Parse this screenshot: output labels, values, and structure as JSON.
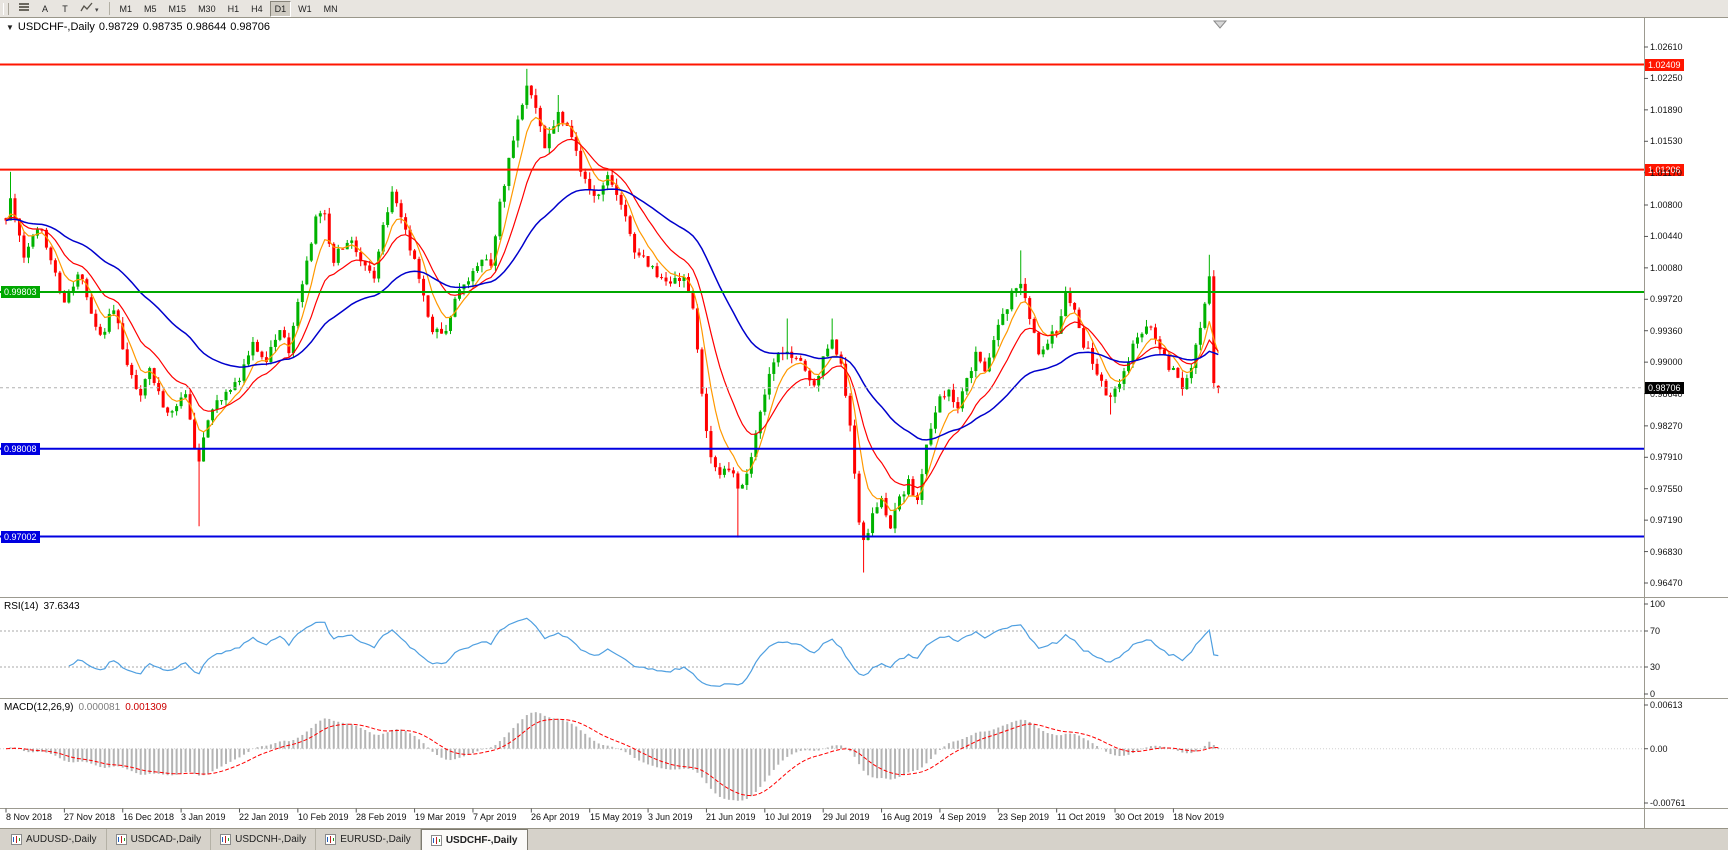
{
  "toolbar": {
    "font_label": "A",
    "text_label": "T",
    "dropdown_glyph": "▾",
    "timeframes": [
      "M1",
      "M5",
      "M15",
      "M30",
      "H1",
      "H4",
      "D1",
      "W1",
      "MN"
    ],
    "active_timeframe": "D1"
  },
  "header": {
    "collapse_arrow": "▼",
    "symbol_period": "USDCHF-,Daily",
    "open": "0.98729",
    "high": "0.98735",
    "low": "0.98644",
    "close": "0.98706"
  },
  "chart_data": {
    "type": "candlestick",
    "symbol": "USDCHF",
    "timeframe": "Daily",
    "current_ohlc": {
      "open": 0.98729,
      "high": 0.98735,
      "low": 0.98644,
      "close": 0.98706
    },
    "price_axis_ticks": [
      "1.02610",
      "1.02250",
      "1.01890",
      "1.01530",
      "1.01170",
      "1.00800",
      "1.00440",
      "1.00080",
      "0.99720",
      "0.99360",
      "0.99000",
      "0.98640",
      "0.98270",
      "0.97910",
      "0.97550",
      "0.97190",
      "0.96830",
      "0.96470"
    ],
    "levels": [
      {
        "price": 1.02409,
        "label": "1.02409",
        "color": "#ff1500",
        "side": "right"
      },
      {
        "price": 1.01206,
        "label": "1.01206",
        "color": "#ff1500",
        "side": "right"
      },
      {
        "price": 0.99803,
        "label": "0.99803",
        "color": "#00a800",
        "side": "left"
      },
      {
        "price": 0.98008,
        "label": "0.98008",
        "color": "#0000e0",
        "side": "left"
      },
      {
        "price": 0.97002,
        "label": "0.97002",
        "color": "#0000e0",
        "side": "left"
      }
    ],
    "current_price": {
      "label": "0.98706",
      "value": 0.98706,
      "box_color": "#000000"
    },
    "date_axis": [
      [
        "8 Nov 2018",
        0
      ],
      [
        "27 Nov 2018",
        13
      ],
      [
        "16 Dec 2018",
        26
      ],
      [
        "3 Jan 2019",
        39
      ],
      [
        "22 Jan 2019",
        52
      ],
      [
        "10 Feb 2019",
        65
      ],
      [
        "28 Feb 2019",
        78
      ],
      [
        "19 Mar 2019",
        91
      ],
      [
        "7 Apr 2019",
        104
      ],
      [
        "26 Apr 2019",
        117
      ],
      [
        "15 May 2019",
        130
      ],
      [
        "3 Jun 2019",
        143
      ],
      [
        "21 Jun 2019",
        156
      ],
      [
        "10 Jul 2019",
        169
      ],
      [
        "29 Jul 2019",
        182
      ],
      [
        "16 Aug 2019",
        195
      ],
      [
        "4 Sep 2019",
        208
      ],
      [
        "23 Sep 2019",
        221
      ],
      [
        "11 Oct 2019",
        234
      ],
      [
        "30 Oct 2019",
        247
      ],
      [
        "18 Nov 2019",
        260
      ]
    ],
    "candles_visible": 271,
    "path_waypoints": [
      [
        0,
        1.0065
      ],
      [
        1,
        1.0082
      ],
      [
        4,
        1.0022
      ],
      [
        8,
        1.0055
      ],
      [
        13,
        0.9965
      ],
      [
        16,
        1.0005
      ],
      [
        21,
        0.9932
      ],
      [
        24,
        0.9958
      ],
      [
        27,
        0.99
      ],
      [
        30,
        0.9856
      ],
      [
        32,
        0.9893
      ],
      [
        36,
        0.9838
      ],
      [
        40,
        0.9868
      ],
      [
        42,
        0.9802
      ],
      [
        43,
        0.979
      ],
      [
        45,
        0.9838
      ],
      [
        48,
        0.9862
      ],
      [
        52,
        0.9884
      ],
      [
        55,
        0.9918
      ],
      [
        58,
        0.9902
      ],
      [
        61,
        0.994
      ],
      [
        63,
        0.9912
      ],
      [
        66,
        0.999
      ],
      [
        69,
        1.0062
      ],
      [
        71,
        1.0068
      ],
      [
        73,
        1.0015
      ],
      [
        76,
        1.0042
      ],
      [
        79,
        1.0022
      ],
      [
        82,
        0.9992
      ],
      [
        84,
        1.0058
      ],
      [
        86,
        1.009
      ],
      [
        88,
        1.0062
      ],
      [
        91,
        1.0012
      ],
      [
        95,
        0.994
      ],
      [
        98,
        0.9932
      ],
      [
        101,
        0.9986
      ],
      [
        104,
        1.0002
      ],
      [
        106,
        1.0022
      ],
      [
        108,
        1.0012
      ],
      [
        110,
        1.0078
      ],
      [
        112,
        1.0128
      ],
      [
        114,
        1.0178
      ],
      [
        116,
        1.0215
      ],
      [
        118,
        1.0192
      ],
      [
        120,
        1.0146
      ],
      [
        123,
        1.0188
      ],
      [
        126,
        1.016
      ],
      [
        129,
        1.0106
      ],
      [
        131,
        1.0088
      ],
      [
        134,
        1.0118
      ],
      [
        137,
        1.008
      ],
      [
        140,
        1.0032
      ],
      [
        143,
        1.0008
      ],
      [
        145,
        1.0
      ],
      [
        148,
        0.9986
      ],
      [
        151,
        1.0
      ],
      [
        153,
        0.9962
      ],
      [
        155,
        0.9862
      ],
      [
        157,
        0.9792
      ],
      [
        159,
        0.9768
      ],
      [
        161,
        0.9782
      ],
      [
        163,
        0.9756
      ],
      [
        165,
        0.9772
      ],
      [
        168,
        0.984
      ],
      [
        171,
        0.99
      ],
      [
        174,
        0.9918
      ],
      [
        177,
        0.9896
      ],
      [
        180,
        0.9872
      ],
      [
        182,
        0.9906
      ],
      [
        184,
        0.993
      ],
      [
        186,
        0.9896
      ],
      [
        188,
        0.9832
      ],
      [
        190,
        0.9722
      ],
      [
        191,
        0.9692
      ],
      [
        193,
        0.9722
      ],
      [
        195,
        0.9746
      ],
      [
        197,
        0.9712
      ],
      [
        199,
        0.9742
      ],
      [
        201,
        0.9762
      ],
      [
        203,
        0.9738
      ],
      [
        205,
        0.98
      ],
      [
        208,
        0.9856
      ],
      [
        210,
        0.9872
      ],
      [
        212,
        0.9846
      ],
      [
        214,
        0.9882
      ],
      [
        216,
        0.9906
      ],
      [
        218,
        0.9892
      ],
      [
        220,
        0.993
      ],
      [
        223,
        0.9966
      ],
      [
        225,
        0.9986
      ],
      [
        226,
        0.9992
      ],
      [
        228,
        0.9952
      ],
      [
        230,
        0.9906
      ],
      [
        232,
        0.9926
      ],
      [
        234,
        0.9936
      ],
      [
        236,
        0.9976
      ],
      [
        238,
        0.9958
      ],
      [
        240,
        0.992
      ],
      [
        242,
        0.99
      ],
      [
        244,
        0.9876
      ],
      [
        246,
        0.9858
      ],
      [
        248,
        0.9872
      ],
      [
        250,
        0.99
      ],
      [
        252,
        0.993
      ],
      [
        254,
        0.9946
      ],
      [
        256,
        0.9922
      ],
      [
        258,
        0.9902
      ],
      [
        260,
        0.9888
      ],
      [
        262,
        0.9872
      ],
      [
        264,
        0.9896
      ],
      [
        266,
        0.994
      ],
      [
        268,
        0.9992
      ],
      [
        269,
        0.9878
      ],
      [
        270,
        0.98706
      ]
    ],
    "wick_spikes": [
      {
        "i": 1,
        "h": 1.0118
      },
      {
        "i": 43,
        "l": 0.9712
      },
      {
        "i": 86,
        "h": 1.0096
      },
      {
        "i": 116,
        "h": 1.0236
      },
      {
        "i": 123,
        "h": 1.0206
      },
      {
        "i": 163,
        "l": 0.9699
      },
      {
        "i": 174,
        "h": 0.995
      },
      {
        "i": 184,
        "h": 0.995
      },
      {
        "i": 191,
        "l": 0.9659
      },
      {
        "i": 226,
        "h": 1.0028
      },
      {
        "i": 246,
        "l": 0.984
      },
      {
        "i": 268,
        "h": 1.0023
      }
    ],
    "moving_averages": [
      {
        "period": 6,
        "color": "#ff9900"
      },
      {
        "period": 14,
        "color": "#ff0000"
      },
      {
        "period": 40,
        "color": "#0000cc"
      }
    ],
    "colors": {
      "up": "#00b200",
      "down": "#ff0000",
      "current_price_line": "#b0b0b0"
    }
  },
  "rsi": {
    "title": "RSI(14)",
    "value": "37.6343",
    "period": 14,
    "axis_ticks": [
      "100",
      "70",
      "30",
      "0"
    ],
    "dashed_levels": [
      70,
      30
    ],
    "color": "#4f9fe0"
  },
  "macd": {
    "title": "MACD(12,26,9)",
    "main_value": "0.000081",
    "signal_value": "0.001309",
    "fast": 12,
    "slow": 26,
    "signal": 9,
    "axis_ticks": [
      "0.00613",
      "0.00",
      "-0.00761"
    ],
    "axis_max": 0.00613,
    "axis_min": -0.00761,
    "hist_color": "#b4b4b4",
    "signal_color": "#ff0000"
  },
  "tabs": {
    "items": [
      "AUDUSD-,Daily",
      "USDCAD-,Daily",
      "USDCNH-,Daily",
      "EURUSD-,Daily",
      "USDCHF-,Daily"
    ],
    "active": "USDCHF-,Daily"
  }
}
